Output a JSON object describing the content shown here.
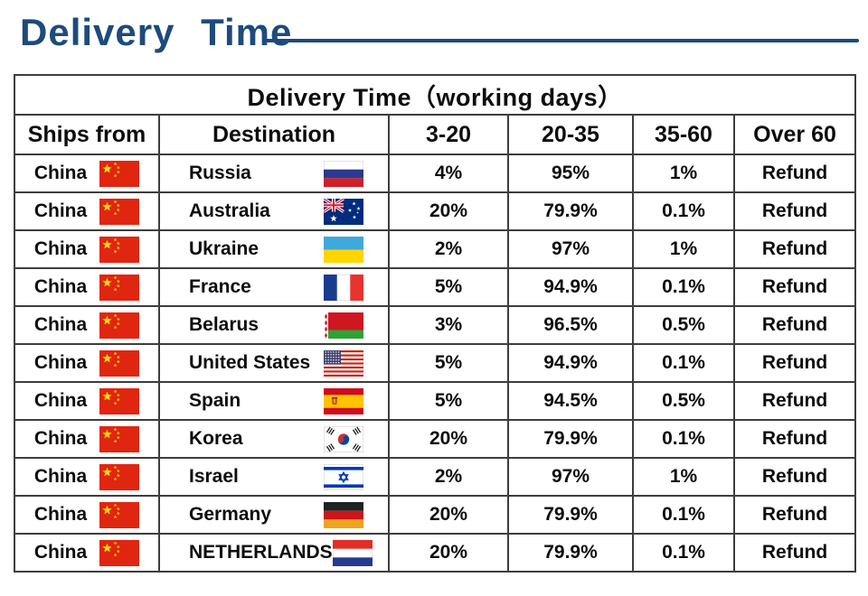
{
  "page_title": {
    "text": "Delivery Time",
    "accent_color": "#1d4b7c"
  },
  "table": {
    "title": "Delivery Time（working days）",
    "columns": [
      "Ships from",
      "Destination",
      "3-20",
      "20-35",
      "35-60",
      "Over 60"
    ],
    "rows": [
      {
        "ships_from": "China",
        "ships_from_flag": "china-flag-icon",
        "destination": "Russia",
        "destination_flag": "russia-flag-icon",
        "d3_20": "4%",
        "d20_35": "95%",
        "d35_60": "1%",
        "over_60": "Refund"
      },
      {
        "ships_from": "China",
        "ships_from_flag": "china-flag-icon",
        "destination": "Australia",
        "destination_flag": "australia-flag-icon",
        "d3_20": "20%",
        "d20_35": "79.9%",
        "d35_60": "0.1%",
        "over_60": "Refund"
      },
      {
        "ships_from": "China",
        "ships_from_flag": "china-flag-icon",
        "destination": "Ukraine",
        "destination_flag": "ukraine-flag-icon",
        "d3_20": "2%",
        "d20_35": "97%",
        "d35_60": "1%",
        "over_60": "Refund"
      },
      {
        "ships_from": "China",
        "ships_from_flag": "china-flag-icon",
        "destination": "France",
        "destination_flag": "france-flag-icon",
        "d3_20": "5%",
        "d20_35": "94.9%",
        "d35_60": "0.1%",
        "over_60": "Refund"
      },
      {
        "ships_from": "China",
        "ships_from_flag": "china-flag-icon",
        "destination": "Belarus",
        "destination_flag": "belarus-flag-icon",
        "d3_20": "3%",
        "d20_35": "96.5%",
        "d35_60": "0.5%",
        "over_60": "Refund"
      },
      {
        "ships_from": "China",
        "ships_from_flag": "china-flag-icon",
        "destination": "United States",
        "destination_flag": "united-states-flag-icon",
        "d3_20": "5%",
        "d20_35": "94.9%",
        "d35_60": "0.1%",
        "over_60": "Refund"
      },
      {
        "ships_from": "China",
        "ships_from_flag": "china-flag-icon",
        "destination": "Spain",
        "destination_flag": "spain-flag-icon",
        "d3_20": "5%",
        "d20_35": "94.5%",
        "d35_60": "0.5%",
        "over_60": "Refund"
      },
      {
        "ships_from": "China",
        "ships_from_flag": "china-flag-icon",
        "destination": "Korea",
        "destination_flag": "korea-flag-icon",
        "d3_20": "20%",
        "d20_35": "79.9%",
        "d35_60": "0.1%",
        "over_60": "Refund"
      },
      {
        "ships_from": "China",
        "ships_from_flag": "china-flag-icon",
        "destination": "Israel",
        "destination_flag": "israel-flag-icon",
        "d3_20": "2%",
        "d20_35": "97%",
        "d35_60": "1%",
        "over_60": "Refund"
      },
      {
        "ships_from": "China",
        "ships_from_flag": "china-flag-icon",
        "destination": "Germany",
        "destination_flag": "germany-flag-icon",
        "d3_20": "20%",
        "d20_35": "79.9%",
        "d35_60": "0.1%",
        "over_60": "Refund"
      },
      {
        "ships_from": "China",
        "ships_from_flag": "china-flag-icon",
        "destination": "NETHERLANDS",
        "destination_flag": "netherlands-flag-icon",
        "d3_20": "20%",
        "d20_35": "79.9%",
        "d35_60": "0.1%",
        "over_60": "Refund"
      }
    ]
  }
}
